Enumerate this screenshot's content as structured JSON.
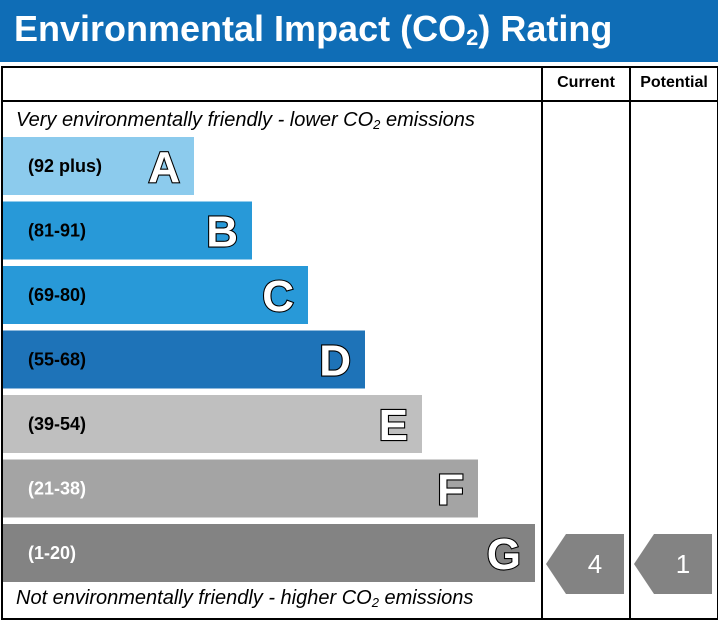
{
  "header": {
    "title_prefix": "Environmental Impact (CO",
    "title_sub": "2",
    "title_suffix": ") Rating"
  },
  "columns": {
    "current": "Current",
    "potential": "Potential"
  },
  "captions": {
    "top_prefix": "Very environmentally friendly - lower CO",
    "top_sub": "2",
    "top_suffix": " emissions",
    "bottom_prefix": "Not environmentally friendly - higher CO",
    "bottom_sub": "2",
    "bottom_suffix": " emissions"
  },
  "chart_data": {
    "type": "bar",
    "categories": [
      "A",
      "B",
      "C",
      "D",
      "E",
      "F",
      "G"
    ],
    "ranges": [
      "(92 plus)",
      "(81-91)",
      "(69-80)",
      "(55-68)",
      "(39-54)",
      "(21-38)",
      "(1-20)"
    ],
    "colors": [
      "#8ccbed",
      "#2899d8",
      "#2899d8",
      "#1e73b8",
      "#bfbfbf",
      "#a4a4a4",
      "#838383"
    ],
    "current": {
      "value": 4,
      "band": "G"
    },
    "potential": {
      "value": 1,
      "band": "G"
    },
    "indicator_color": "#838383"
  }
}
